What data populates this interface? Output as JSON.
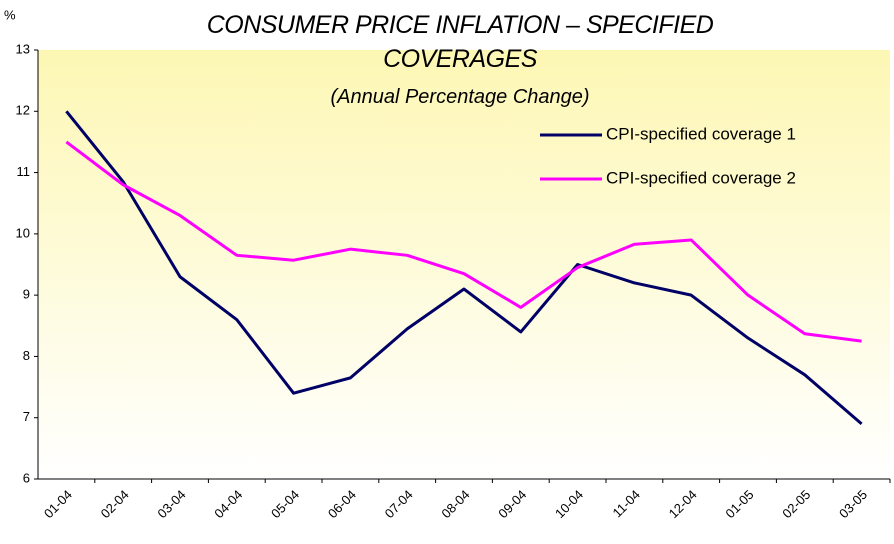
{
  "chart_data": {
    "type": "line",
    "title": "CONSUMER PRICE INFLATION – SPECIFIED COVERAGES",
    "subtitle": "(Annual Percentage Change)",
    "y_label": "%",
    "categories": [
      "01-04",
      "02-04",
      "03-04",
      "04-04",
      "05-04",
      "06-04",
      "07-04",
      "08-04",
      "09-04",
      "10-04",
      "11-04",
      "12-04",
      "01-05",
      "02-05",
      "03-05"
    ],
    "series": [
      {
        "name": "CPI-specified coverage 1",
        "color": "#000066",
        "values": [
          12.0,
          10.85,
          9.3,
          8.6,
          7.4,
          7.65,
          8.45,
          9.1,
          8.4,
          9.5,
          9.2,
          9.0,
          8.3,
          7.7,
          6.9
        ]
      },
      {
        "name": "CPI-specified coverage 2",
        "color": "#ff00ff",
        "values": [
          11.5,
          10.8,
          10.3,
          9.65,
          9.57,
          9.75,
          9.65,
          9.35,
          8.8,
          9.45,
          9.83,
          9.9,
          9.0,
          8.37,
          8.25
        ]
      }
    ],
    "ylim": [
      6,
      13
    ],
    "yticks": [
      6,
      7,
      8,
      9,
      10,
      11,
      12,
      13
    ],
    "grid": false,
    "legend": "top-right"
  }
}
